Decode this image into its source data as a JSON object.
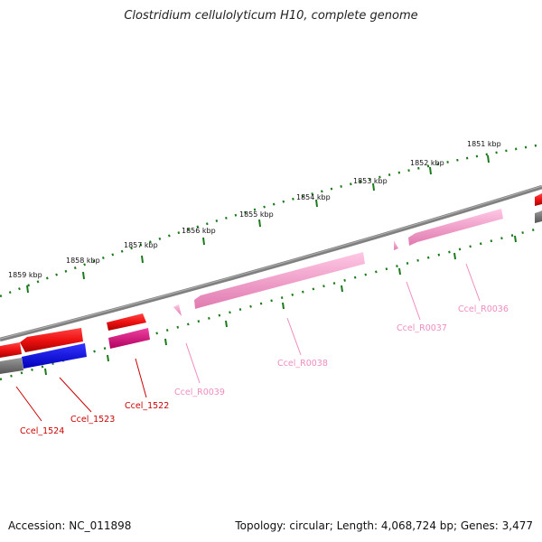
{
  "title": "Clostridium cellulolyticum H10, complete genome",
  "footer": {
    "accession": "Accession: NC_011898",
    "summary": "Topology: circular; Length: 4,068,724 bp; Genes: 3,477"
  },
  "ruler_labels": [
    "1851 kbp",
    "1852 kbp",
    "1853 kbp",
    "1854 kbp",
    "1855 kbp",
    "1856 kbp",
    "1857 kbp",
    "1858 kbp",
    "1859 kbp"
  ],
  "features": [
    {
      "label": "Ccel_1524",
      "type": "CDS",
      "color": "#cc0000"
    },
    {
      "label": "Ccel_1523",
      "type": "CDS",
      "color": "#cc0000"
    },
    {
      "label": "Ccel_1522",
      "type": "CDS",
      "color": "#cc0000"
    },
    {
      "label": "Ccel_R0039",
      "type": "rRNA",
      "color": "#f08cc0"
    },
    {
      "label": "Ccel_R0038",
      "type": "rRNA",
      "color": "#f08cc0"
    },
    {
      "label": "Ccel_R0037",
      "type": "rRNA",
      "color": "#f08cc0"
    },
    {
      "label": "Ccel_R0036",
      "type": "rRNA",
      "color": "#f08cc0"
    }
  ],
  "colors": {
    "backbone": "#808080",
    "ruler_ticks": "#1a7a1a",
    "cds_red": "#ee1111",
    "cds_blue": "#1111dd",
    "cds_magenta": "#e0147a",
    "rrna_pink": "#f7a8d0",
    "gene_grey": "#777777"
  }
}
